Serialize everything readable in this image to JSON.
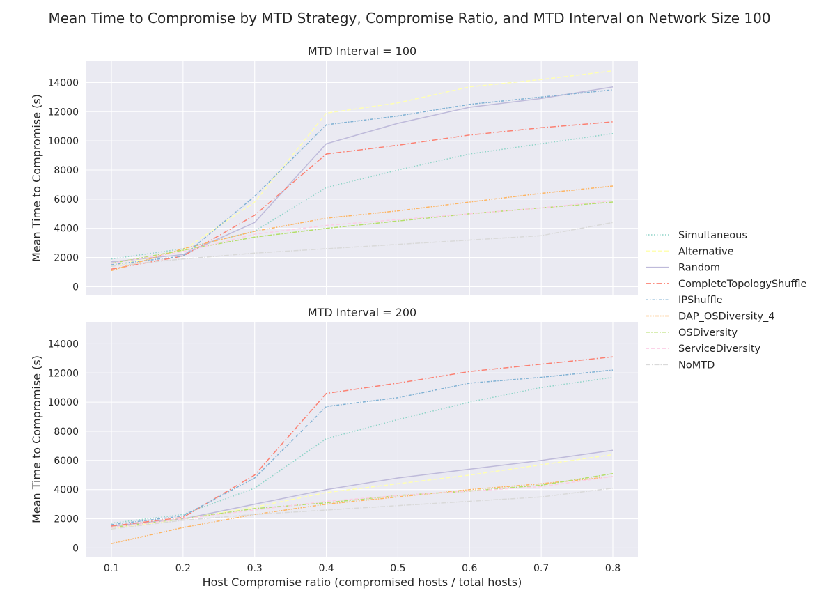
{
  "title": "Mean Time to Compromise by MTD Strategy, Compromise Ratio, and MTD Interval on Network Size 100",
  "chart_data": {
    "type": "line",
    "xlabel": "Host Compromise ratio (compromised hosts / total hosts)",
    "ylabel": "Mean Time to Compromise (s)",
    "x": [
      0.1,
      0.2,
      0.3,
      0.4,
      0.5,
      0.6,
      0.7,
      0.8
    ],
    "x_tick_labels": [
      "0.1",
      "0.2",
      "0.3",
      "0.4",
      "0.5",
      "0.6",
      "0.7",
      "0.8"
    ],
    "xlim": [
      0.065,
      0.835
    ],
    "ylim": [
      -600,
      15500
    ],
    "y_ticks": [
      0,
      2000,
      4000,
      6000,
      8000,
      10000,
      12000,
      14000
    ],
    "y_tick_labels": [
      "0",
      "2000",
      "4000",
      "6000",
      "8000",
      "10000",
      "12000",
      "14000"
    ],
    "grid": true,
    "legend_position": "right",
    "legend": [
      "Simultaneous",
      "Alternative",
      "Random",
      "CompleteTopologyShuffle",
      "IPShuffle",
      "DAP_OSDiversity_4",
      "OSDiversity",
      "ServiceDiversity",
      "NoMTD"
    ],
    "facets": [
      {
        "title": "MTD Interval = 100",
        "series": [
          {
            "name": "Simultaneous",
            "color": "#8dd3c7",
            "dash": "1.5,2.5",
            "values": [
              1900,
              2600,
              3800,
              6800,
              8000,
              9100,
              9800,
              10500
            ]
          },
          {
            "name": "Alternative",
            "color": "#ffffb3",
            "dash": "6,3",
            "values": [
              1400,
              2500,
              5800,
              11900,
              12600,
              13700,
              14200,
              14800
            ]
          },
          {
            "name": "Random",
            "color": "#bebada",
            "dash": "",
            "values": [
              1700,
              2200,
              4400,
              9800,
              11200,
              12300,
              12900,
              13700
            ]
          },
          {
            "name": "CompleteTopologyShuffle",
            "color": "#fb8072",
            "dash": "8,3,1.5,3",
            "values": [
              1200,
              2100,
              4900,
              9100,
              9700,
              10400,
              10900,
              11300
            ]
          },
          {
            "name": "IPShuffle",
            "color": "#80b1d3",
            "dash": "4,2,1.5,2",
            "values": [
              1500,
              2100,
              6200,
              11100,
              11700,
              12500,
              13000,
              13500
            ]
          },
          {
            "name": "DAP_OSDiversity_4",
            "color": "#fdb462",
            "dash": "5,2,1.5,2,1.5,2",
            "values": [
              1100,
              2600,
              3800,
              4700,
              5200,
              5800,
              6400,
              6900
            ]
          },
          {
            "name": "OSDiversity",
            "color": "#b3de69",
            "dash": "6,2,2,2",
            "values": [
              1600,
              2500,
              3400,
              4000,
              4500,
              5000,
              5400,
              5800
            ]
          },
          {
            "name": "ServiceDiversity",
            "color": "#fccde5",
            "dash": "5,3",
            "values": [
              1600,
              2400,
              3600,
              4200,
              4600,
              5000,
              5400,
              5900
            ]
          },
          {
            "name": "NoMTD",
            "color": "#d9d9d9",
            "dash": "7,2,1.5,2",
            "values": [
              1400,
              1900,
              2300,
              2600,
              2900,
              3200,
              3500,
              4400
            ]
          }
        ]
      },
      {
        "title": "MTD Interval = 200",
        "series": [
          {
            "name": "Simultaneous",
            "color": "#8dd3c7",
            "dash": "1.5,2.5",
            "values": [
              1700,
              2300,
              4100,
              7500,
              8800,
              10000,
              11000,
              11700
            ]
          },
          {
            "name": "Alternative",
            "color": "#ffffb3",
            "dash": "6,3",
            "values": [
              1300,
              2000,
              2800,
              3800,
              4400,
              5000,
              5700,
              6400
            ]
          },
          {
            "name": "Random",
            "color": "#bebada",
            "dash": "",
            "values": [
              1500,
              2000,
              3000,
              4000,
              4800,
              5400,
              6000,
              6700
            ]
          },
          {
            "name": "CompleteTopologyShuffle",
            "color": "#fb8072",
            "dash": "8,3,1.5,3",
            "values": [
              1500,
              2100,
              5000,
              10600,
              11300,
              12100,
              12600,
              13100
            ]
          },
          {
            "name": "IPShuffle",
            "color": "#80b1d3",
            "dash": "4,2,1.5,2",
            "values": [
              1600,
              2200,
              4800,
              9700,
              10300,
              11300,
              11700,
              12200
            ]
          },
          {
            "name": "DAP_OSDiversity_4",
            "color": "#fdb462",
            "dash": "5,2,1.5,2,1.5,2",
            "values": [
              300,
              1400,
              2300,
              3000,
              3500,
              4000,
              4400,
              4900
            ]
          },
          {
            "name": "OSDiversity",
            "color": "#b3de69",
            "dash": "6,2,2,2",
            "values": [
              1400,
              2000,
              2700,
              3100,
              3600,
              3900,
              4300,
              5100
            ]
          },
          {
            "name": "ServiceDiversity",
            "color": "#fccde5",
            "dash": "5,3",
            "values": [
              1400,
              2000,
              2600,
              3200,
              3600,
              3900,
              4200,
              4900
            ]
          },
          {
            "name": "NoMTD",
            "color": "#d9d9d9",
            "dash": "7,2,1.5,2",
            "values": [
              1300,
              1900,
              2300,
              2600,
              2900,
              3200,
              3500,
              4100
            ]
          }
        ]
      }
    ]
  }
}
